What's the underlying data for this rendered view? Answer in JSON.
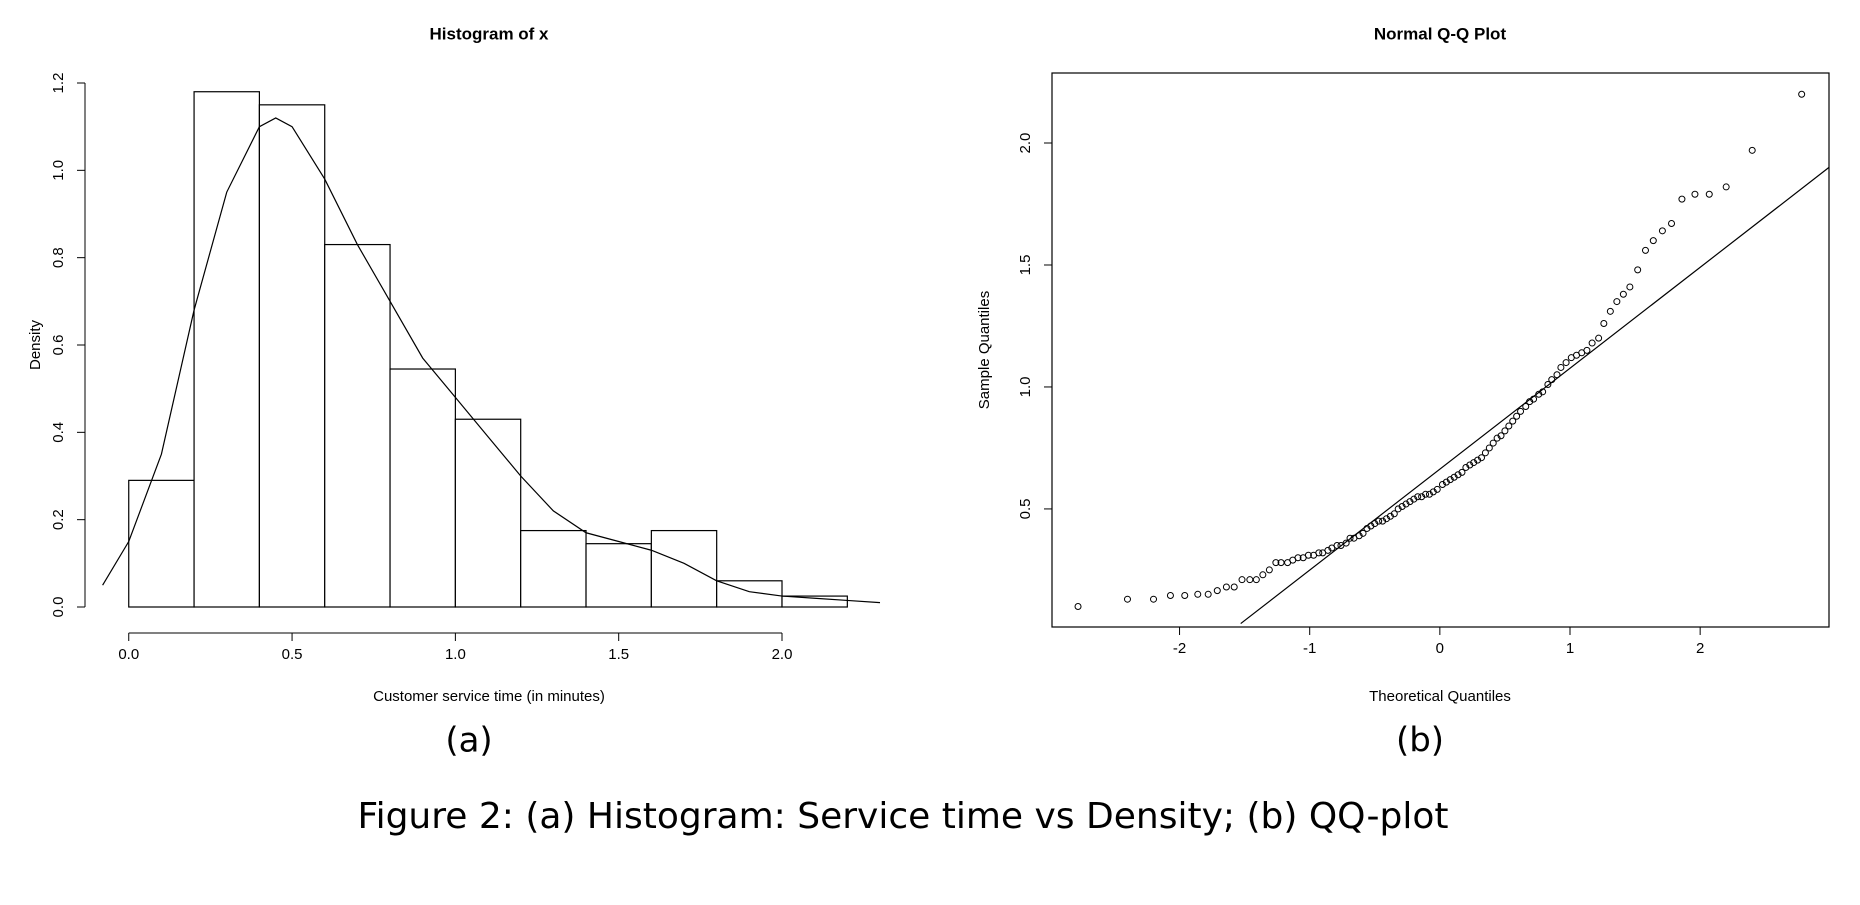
{
  "chart_data": [
    {
      "type": "histogram",
      "title": "Histogram of x",
      "xlabel": "Customer service time (in minutes)",
      "ylabel": "Density",
      "panel_label": "(a)",
      "bins": [
        0,
        0.2,
        0.4,
        0.6,
        0.8,
        1.0,
        1.2,
        1.4,
        1.6,
        1.8,
        2.0,
        2.2
      ],
      "values": [
        0.29,
        1.18,
        1.15,
        0.83,
        0.545,
        0.43,
        0.175,
        0.145,
        0.175,
        0.06,
        0.025
      ],
      "color": "#ffffff",
      "density_curve": {
        "x": [
          -0.08,
          0,
          0.1,
          0.2,
          0.3,
          0.4,
          0.45,
          0.5,
          0.6,
          0.7,
          0.8,
          0.9,
          1.0,
          1.1,
          1.2,
          1.3,
          1.4,
          1.5,
          1.6,
          1.7,
          1.8,
          1.9,
          2.0,
          2.1,
          2.2,
          2.3
        ],
        "values": [
          0.05,
          0.15,
          0.35,
          0.68,
          0.95,
          1.1,
          1.12,
          1.1,
          0.98,
          0.83,
          0.7,
          0.57,
          0.48,
          0.39,
          0.3,
          0.22,
          0.17,
          0.15,
          0.13,
          0.1,
          0.06,
          0.035,
          0.025,
          0.02,
          0.015,
          0.01
        ]
      },
      "xlim": [
        -0.088,
        2.3
      ],
      "ylim": [
        0,
        1.2
      ],
      "xticks": [
        {
          "value": 0,
          "label": "0.0"
        },
        0.5,
        {
          "value": 1,
          "label": "1.0"
        },
        1.5,
        {
          "value": 2,
          "label": "2.0"
        }
      ],
      "yticks": [
        {
          "value": 0,
          "label": "0.0"
        },
        0.2,
        0.4,
        0.6,
        0.8,
        {
          "value": 1,
          "label": "1.0"
        },
        1.2
      ]
    },
    {
      "type": "scatter",
      "title": "Normal Q-Q Plot",
      "xlabel": "Theoretical Quantiles",
      "ylabel": "Sample Quantiles",
      "panel_label": "(b)",
      "x": [
        -2.78,
        -2.4,
        -2.2,
        -2.07,
        -1.96,
        -1.86,
        -1.78,
        -1.71,
        -1.64,
        -1.58,
        -1.52,
        -1.46,
        -1.41,
        -1.36,
        -1.31,
        -1.26,
        -1.22,
        -1.17,
        -1.13,
        -1.09,
        -1.05,
        -1.01,
        -0.97,
        -0.93,
        -0.9,
        -0.86,
        -0.83,
        -0.79,
        -0.76,
        -0.72,
        -0.69,
        -0.66,
        -0.62,
        -0.59,
        -0.56,
        -0.53,
        -0.5,
        -0.47,
        -0.44,
        -0.41,
        -0.38,
        -0.35,
        -0.32,
        -0.29,
        -0.26,
        -0.23,
        -0.2,
        -0.17,
        -0.14,
        -0.11,
        -0.08,
        -0.05,
        -0.02,
        0.02,
        0.05,
        0.08,
        0.11,
        0.14,
        0.17,
        0.2,
        0.23,
        0.26,
        0.29,
        0.32,
        0.35,
        0.38,
        0.41,
        0.44,
        0.47,
        0.5,
        0.53,
        0.56,
        0.59,
        0.62,
        0.66,
        0.69,
        0.72,
        0.76,
        0.79,
        0.83,
        0.86,
        0.9,
        0.93,
        0.97,
        1.01,
        1.05,
        1.09,
        1.13,
        1.17,
        1.22,
        1.26,
        1.31,
        1.36,
        1.41,
        1.46,
        1.52,
        1.58,
        1.64,
        1.71,
        1.78,
        1.86,
        1.96,
        2.07,
        2.2,
        2.4,
        2.78
      ],
      "values": [
        0.1,
        0.13,
        0.13,
        0.145,
        0.145,
        0.15,
        0.15,
        0.165,
        0.18,
        0.18,
        0.21,
        0.21,
        0.21,
        0.23,
        0.25,
        0.28,
        0.28,
        0.28,
        0.29,
        0.3,
        0.3,
        0.31,
        0.31,
        0.32,
        0.32,
        0.33,
        0.34,
        0.35,
        0.35,
        0.36,
        0.38,
        0.38,
        0.39,
        0.4,
        0.42,
        0.43,
        0.44,
        0.45,
        0.45,
        0.46,
        0.47,
        0.48,
        0.5,
        0.51,
        0.52,
        0.53,
        0.54,
        0.55,
        0.55,
        0.56,
        0.56,
        0.57,
        0.58,
        0.6,
        0.61,
        0.62,
        0.63,
        0.64,
        0.65,
        0.67,
        0.68,
        0.69,
        0.7,
        0.71,
        0.73,
        0.75,
        0.77,
        0.79,
        0.8,
        0.82,
        0.84,
        0.86,
        0.88,
        0.9,
        0.92,
        0.94,
        0.95,
        0.97,
        0.98,
        1.01,
        1.03,
        1.05,
        1.08,
        1.1,
        1.12,
        1.13,
        1.14,
        1.15,
        1.18,
        1.2,
        1.26,
        1.31,
        1.35,
        1.38,
        1.41,
        1.48,
        1.56,
        1.6,
        1.64,
        1.67,
        1.77,
        1.79,
        1.79,
        1.82,
        1.97,
        2.2
      ],
      "color": "#000000",
      "qq_line": {
        "x": [
          -1.53,
          2.99
        ],
        "values": [
          0.03,
          1.9
        ]
      },
      "xlim": [
        -2.98,
        2.99
      ],
      "ylim": [
        0.016,
        2.287
      ],
      "xticks": [
        -2,
        -1,
        0,
        1,
        2
      ],
      "yticks": [
        0.5,
        {
          "value": 1,
          "label": "1.0"
        },
        1.5,
        {
          "value": 2,
          "label": "2.0"
        }
      ]
    }
  ],
  "caption": "Figure 2: (a) Histogram: Service time vs Density; (b) QQ-plot"
}
